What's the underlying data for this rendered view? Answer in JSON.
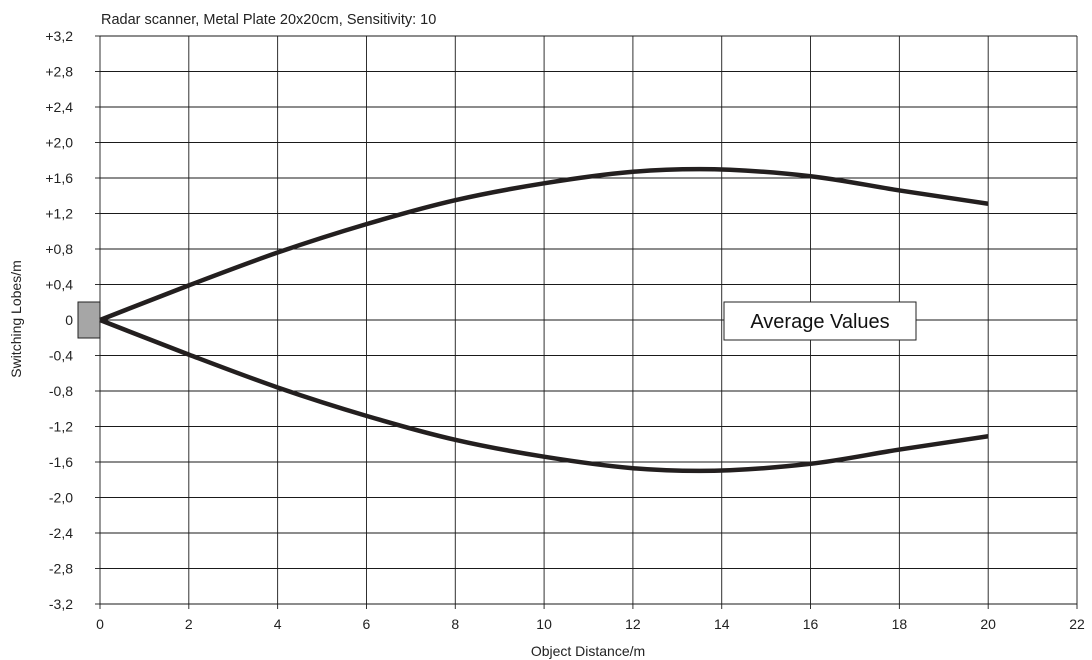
{
  "chart_data": {
    "type": "line",
    "title": "Radar scanner, Metal Plate 20x20cm, Sensitivity: 10",
    "xlabel": "Object Distance/m",
    "ylabel": "Switching Lobes/m",
    "xlim": [
      0,
      22
    ],
    "ylim": [
      -3.2,
      3.2
    ],
    "x_ticks": [
      0,
      2,
      4,
      6,
      8,
      10,
      12,
      14,
      16,
      18,
      20,
      22
    ],
    "x_tick_labels": [
      "0",
      "2",
      "4",
      "6",
      "8",
      "10",
      "12",
      "14",
      "16",
      "18",
      "20",
      "22"
    ],
    "y_ticks": [
      3.2,
      2.8,
      2.4,
      2.0,
      1.6,
      1.2,
      0.8,
      0.4,
      0,
      -0.4,
      -0.8,
      -1.2,
      -1.6,
      -2.0,
      -2.4,
      -2.8,
      -3.2
    ],
    "y_tick_labels": [
      "+3,2",
      "+2,8",
      "+2,4",
      "+2,0",
      "+1,6",
      "+1,2",
      "+0,8",
      "+0,4",
      "0",
      "-0,4",
      "-0,8",
      "-1,2",
      "-1,6",
      "-2,0",
      "-2,4",
      "-2,8",
      "-3,2"
    ],
    "grid": true,
    "annotation": "Average Values",
    "sensor_color": "#a6a6a6",
    "line_color": "#231f1f",
    "series": [
      {
        "x": [
          0,
          2,
          4,
          6,
          8,
          10,
          12,
          13.5,
          16,
          18,
          20
        ],
        "y": [
          0,
          0.39,
          0.76,
          1.08,
          1.35,
          1.54,
          1.67,
          1.7,
          1.62,
          1.46,
          1.31
        ]
      },
      {
        "x": [
          0,
          2,
          4,
          6,
          8,
          10,
          12,
          13.5,
          16,
          18,
          20
        ],
        "y": [
          0,
          -0.39,
          -0.76,
          -1.08,
          -1.35,
          -1.54,
          -1.67,
          -1.7,
          -1.62,
          -1.46,
          -1.31
        ]
      }
    ]
  }
}
